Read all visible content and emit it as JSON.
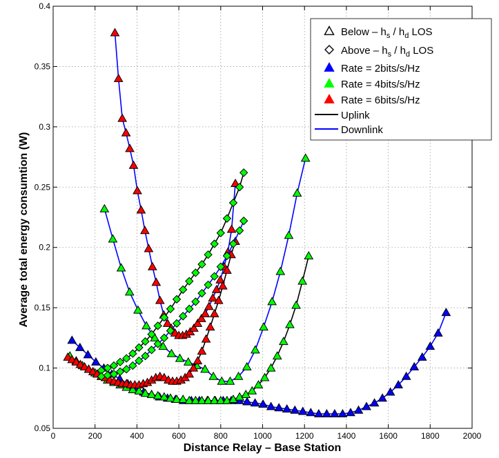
{
  "chart_data": {
    "type": "line",
    "title": "",
    "xlabel": "Distance Relay – Base Station",
    "ylabel": "Average total energy consumtion (W)",
    "xlim": [
      0,
      2000
    ],
    "ylim": [
      0.05,
      0.4
    ],
    "xticks": [
      0,
      200,
      400,
      600,
      800,
      1000,
      1200,
      1400,
      1600,
      1800,
      2000
    ],
    "yticks": [
      0.05,
      0.1,
      0.15,
      0.2,
      0.25,
      0.3,
      0.35,
      0.4
    ],
    "xtick_labels": [
      "0",
      "200",
      "400",
      "600",
      "800",
      "1000",
      "1200",
      "1400",
      "1600",
      "1800",
      "2000"
    ],
    "ytick_labels": [
      "0.05",
      "0.1",
      "0.15",
      "0.2",
      "0.25",
      "0.3",
      "0.35",
      "0.4"
    ],
    "grid": true,
    "legend_position": "top-right",
    "legend": [
      {
        "kind": "marker",
        "marker": "triangle",
        "fill": "#ffffff",
        "pre": "Below – h",
        "sub1": "s",
        "mid": " / h",
        "sub2": "d",
        "post": " LOS"
      },
      {
        "kind": "marker",
        "marker": "diamond",
        "fill": "#ffffff",
        "pre": "Above – h",
        "sub1": "s",
        "mid": " / h",
        "sub2": "d",
        "post": " LOS"
      },
      {
        "kind": "marker",
        "marker": "triangle",
        "fill": "#0000ff",
        "label": "Rate = 2bits/s/Hz"
      },
      {
        "kind": "marker",
        "marker": "triangle",
        "fill": "#00ff00",
        "label": "Rate = 4bits/s/Hz"
      },
      {
        "kind": "marker",
        "marker": "triangle",
        "fill": "#ff0000",
        "label": "Rate = 6bits/s/Hz"
      },
      {
        "kind": "line",
        "color": "#000000",
        "label": "Uplink"
      },
      {
        "kind": "line",
        "color": "#0000ff",
        "label": "Downlink"
      }
    ],
    "series": [
      {
        "name": "Below LOS, Rate 6, Downlink",
        "line": "#0000ff",
        "fill": "#ff0000",
        "marker": "triangle",
        "x": [
          295,
          312,
          330,
          348,
          366,
          384,
          402,
          420,
          438,
          456,
          474,
          492,
          510,
          528,
          546,
          564,
          582,
          600,
          618,
          636,
          654,
          672,
          690,
          708,
          726,
          744,
          762,
          780,
          798,
          816,
          834,
          852,
          870
        ],
        "y": [
          0.378,
          0.34,
          0.307,
          0.295,
          0.282,
          0.268,
          0.247,
          0.231,
          0.214,
          0.199,
          0.184,
          0.171,
          0.156,
          0.144,
          0.137,
          0.133,
          0.129,
          0.127,
          0.127,
          0.128,
          0.13,
          0.133,
          0.137,
          0.141,
          0.145,
          0.151,
          0.158,
          0.165,
          0.173,
          0.184,
          0.196,
          0.215,
          0.253
        ]
      },
      {
        "name": "Below LOS, Rate 4, Downlink",
        "line": "#0000ff",
        "fill": "#00ff00",
        "marker": "triangle",
        "x": [
          245,
          285,
          325,
          365,
          405,
          445,
          485,
          525,
          565,
          605,
          645,
          685,
          725,
          765,
          805,
          845,
          885,
          925,
          965,
          1005,
          1045,
          1085,
          1125,
          1165,
          1205
        ],
        "y": [
          0.232,
          0.207,
          0.183,
          0.163,
          0.148,
          0.135,
          0.125,
          0.118,
          0.112,
          0.108,
          0.105,
          0.102,
          0.099,
          0.093,
          0.089,
          0.089,
          0.093,
          0.101,
          0.115,
          0.134,
          0.155,
          0.18,
          0.21,
          0.245,
          0.274
        ]
      },
      {
        "name": "Below LOS, Rate 2, Downlink",
        "line": "#0000ff",
        "fill": "#0000ff",
        "marker": "triangle",
        "x": [
          90,
          128,
          166,
          204,
          242,
          280,
          318,
          356,
          394,
          432,
          470,
          508,
          546,
          584,
          622,
          660,
          698,
          736,
          774,
          812,
          850,
          888,
          926,
          964,
          1002,
          1040,
          1078,
          1116,
          1154,
          1192,
          1230,
          1268,
          1306,
          1344,
          1382,
          1420,
          1458,
          1496,
          1534,
          1572,
          1610,
          1648,
          1686,
          1724,
          1762,
          1800,
          1838,
          1876
        ],
        "y": [
          0.123,
          0.117,
          0.111,
          0.105,
          0.1,
          0.095,
          0.091,
          0.087,
          0.083,
          0.08,
          0.078,
          0.076,
          0.075,
          0.074,
          0.073,
          0.073,
          0.073,
          0.073,
          0.073,
          0.073,
          0.073,
          0.073,
          0.072,
          0.071,
          0.07,
          0.068,
          0.067,
          0.066,
          0.065,
          0.064,
          0.063,
          0.062,
          0.062,
          0.062,
          0.062,
          0.063,
          0.065,
          0.068,
          0.071,
          0.075,
          0.08,
          0.086,
          0.093,
          0.101,
          0.109,
          0.118,
          0.129,
          0.146
        ]
      },
      {
        "name": "Below LOS, Rate 4, Uplink",
        "line": "#000000",
        "fill": "#00ff00",
        "marker": "triangle",
        "x": [
          80,
          110,
          140,
          170,
          200,
          230,
          260,
          290,
          320,
          350,
          380,
          410,
          440,
          470,
          500,
          530,
          560,
          590,
          620,
          650,
          680,
          710,
          740,
          770,
          800,
          830,
          860,
          890,
          920,
          950,
          980,
          1010,
          1040,
          1070,
          1100,
          1130,
          1160,
          1190,
          1220
        ],
        "y": [
          0.11,
          0.106,
          0.102,
          0.099,
          0.096,
          0.093,
          0.09,
          0.088,
          0.086,
          0.084,
          0.082,
          0.081,
          0.079,
          0.078,
          0.077,
          0.076,
          0.075,
          0.074,
          0.074,
          0.073,
          0.073,
          0.073,
          0.073,
          0.073,
          0.073,
          0.073,
          0.074,
          0.076,
          0.078,
          0.081,
          0.086,
          0.092,
          0.1,
          0.11,
          0.122,
          0.136,
          0.152,
          0.172,
          0.193
        ]
      },
      {
        "name": "Below LOS, Rate 6, Uplink",
        "line": "#000000",
        "fill": "#ff0000",
        "marker": "triangle",
        "x": [
          70,
          90,
          110,
          130,
          150,
          170,
          190,
          210,
          230,
          250,
          270,
          290,
          310,
          330,
          350,
          370,
          390,
          410,
          430,
          450,
          470,
          490,
          510,
          530,
          550,
          570,
          590,
          610,
          630,
          650,
          670,
          690,
          710,
          730,
          750,
          770,
          790,
          810,
          830,
          850,
          870
        ],
        "y": [
          0.109,
          0.107,
          0.105,
          0.103,
          0.101,
          0.099,
          0.097,
          0.095,
          0.093,
          0.092,
          0.09,
          0.089,
          0.088,
          0.087,
          0.087,
          0.086,
          0.086,
          0.086,
          0.087,
          0.088,
          0.09,
          0.092,
          0.093,
          0.092,
          0.09,
          0.089,
          0.089,
          0.09,
          0.092,
          0.095,
          0.1,
          0.106,
          0.114,
          0.124,
          0.134,
          0.145,
          0.156,
          0.168,
          0.181,
          0.194,
          0.205
        ]
      },
      {
        "name": "Above LOS, Rate 4, Uplink",
        "line": "#000000",
        "fill": "#00ff00",
        "marker": "diamond",
        "x": [
          230,
          260,
          290,
          320,
          350,
          380,
          410,
          440,
          470,
          500,
          530,
          560,
          590,
          620,
          650,
          680,
          710,
          740,
          770,
          800,
          830,
          860,
          890,
          910
        ],
        "y": [
          0.098,
          0.1,
          0.102,
          0.105,
          0.108,
          0.112,
          0.117,
          0.122,
          0.128,
          0.135,
          0.142,
          0.149,
          0.157,
          0.165,
          0.172,
          0.179,
          0.186,
          0.194,
          0.203,
          0.212,
          0.224,
          0.237,
          0.25,
          0.262
        ]
      },
      {
        "name": "Above LOS, Rate 4, Downlink",
        "line": "#0000ff",
        "fill": "#00ff00",
        "marker": "diamond",
        "x": [
          230,
          260,
          290,
          320,
          350,
          380,
          410,
          440,
          470,
          500,
          530,
          560,
          590,
          620,
          650,
          680,
          710,
          740,
          770,
          800,
          830,
          860,
          890,
          910
        ],
        "y": [
          0.093,
          0.094,
          0.095,
          0.097,
          0.099,
          0.102,
          0.106,
          0.11,
          0.115,
          0.12,
          0.125,
          0.131,
          0.137,
          0.143,
          0.149,
          0.155,
          0.162,
          0.169,
          0.176,
          0.184,
          0.193,
          0.203,
          0.214,
          0.222
        ]
      }
    ]
  }
}
